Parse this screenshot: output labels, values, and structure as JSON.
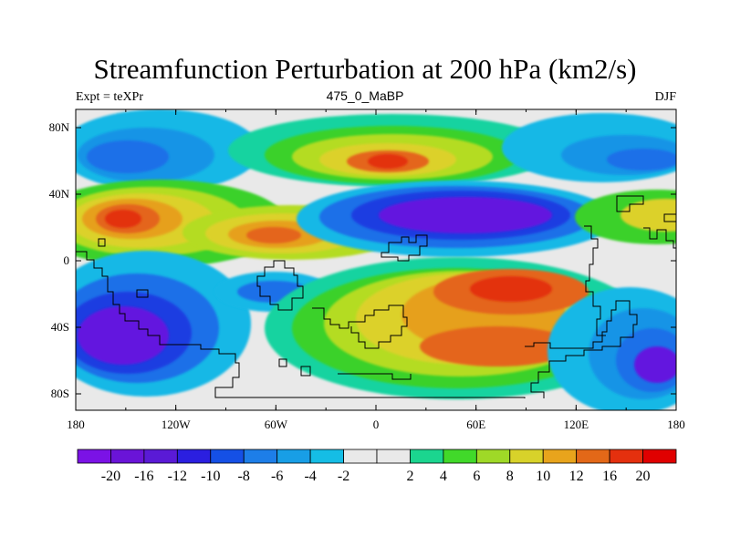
{
  "figure": {
    "title": "Streamfunction Perturbation at 200 hPa (km2/s)",
    "left_string": "Expt = teXPr",
    "center_string": "475_0_MaBP",
    "right_string": "DJF"
  },
  "axes": {
    "x_tick_labels": [
      "180",
      "120W",
      "60W",
      "0",
      "60E",
      "120E",
      "180"
    ],
    "y_tick_labels": [
      "80N",
      "40N",
      "0",
      "40S",
      "80S"
    ]
  },
  "colorbar": {
    "colors": [
      "#7b12e6",
      "#6a14d8",
      "#5a1ad6",
      "#2b1fe0",
      "#1550e6",
      "#1d7ee8",
      "#189ee6",
      "#15bde5",
      "#e9e9e9",
      "#e9e9e9",
      "#1bd58f",
      "#41d92a",
      "#9fd927",
      "#d8d22a",
      "#e8a41c",
      "#e36818",
      "#e4300e",
      "#e00000"
    ],
    "labels": [
      "-20",
      "-16",
      "-12",
      "-10",
      "-8",
      "-6",
      "-4",
      "-2",
      "2",
      "4",
      "6",
      "8",
      "10",
      "12",
      "16",
      "20"
    ]
  },
  "palette": {
    "neutral": "#e9e9e9",
    "purple": "#6419df",
    "darkblue": "#1c3de1",
    "blue": "#1a6fe8",
    "medblue": "#1894e6",
    "lightblue": "#16b8e6",
    "teal": "#17d3a0",
    "green": "#3ad12a",
    "lime": "#b4dc22",
    "yellow": "#dcd12c",
    "orange": "#e6a01e",
    "darkorange": "#e4651a",
    "red": "#e3300f"
  }
}
